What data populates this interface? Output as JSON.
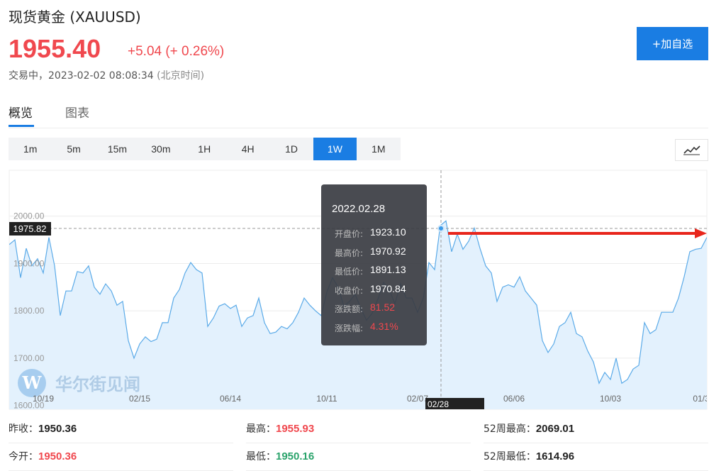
{
  "header": {
    "title": "现货黄金",
    "symbol": "(XAUUSD)",
    "price": "1955.40",
    "change": "+5.04",
    "change_pct": "(+ 0.26%)",
    "status": "交易中，2023-02-02 08:08:34",
    "timezone": "(北京时间)",
    "button": "+加自选"
  },
  "tabs": [
    "概览",
    "图表"
  ],
  "intervals": [
    "1m",
    "5m",
    "15m",
    "30m",
    "1H",
    "4H",
    "1D",
    "1W",
    "1M"
  ],
  "active_interval": "1W",
  "chart_data": {
    "type": "area",
    "color": "#5aaae8",
    "fill": "#e3f1fd",
    "categories": [
      null,
      null,
      null,
      null,
      null,
      null,
      "10/19",
      null,
      null,
      null,
      null,
      null,
      null,
      null,
      null,
      null,
      null,
      null,
      null,
      null,
      null,
      null,
      null,
      "02/15",
      null,
      null,
      null,
      null,
      null,
      null,
      null,
      null,
      null,
      null,
      null,
      null,
      null,
      null,
      null,
      "06/14",
      null,
      null,
      null,
      null,
      null,
      null,
      null,
      null,
      null,
      null,
      null,
      null,
      null,
      null,
      null,
      null,
      "10/11",
      null,
      null,
      null,
      null,
      null,
      null,
      null,
      null,
      null,
      null,
      null,
      null,
      null,
      null,
      null,
      "02/07",
      null,
      null,
      null,
      null,
      null,
      null,
      null,
      null,
      null,
      null,
      null,
      null,
      null,
      null,
      null,
      null,
      "06/06",
      null,
      null,
      null,
      null,
      null,
      null,
      null,
      null,
      null,
      null,
      null,
      null,
      null,
      null,
      null,
      null,
      "10/03",
      null,
      null,
      null,
      null,
      null,
      null,
      null,
      null,
      null,
      null,
      null,
      null,
      null,
      null,
      null,
      "01/3",
      null
    ],
    "values": [
      1940,
      1950,
      1870,
      1932,
      1895,
      1910,
      1880,
      1955,
      1895,
      1790,
      1842,
      1842,
      1883,
      1880,
      1895,
      1850,
      1835,
      1857,
      1842,
      1812,
      1820,
      1737,
      1700,
      1730,
      1745,
      1735,
      1740,
      1775,
      1775,
      1827,
      1845,
      1880,
      1902,
      1887,
      1880,
      1767,
      1785,
      1810,
      1815,
      1805,
      1812,
      1767,
      1785,
      1790,
      1827,
      1775,
      1752,
      1755,
      1767,
      1762,
      1775,
      1797,
      1827,
      1812,
      1800,
      1790,
      1840,
      1870,
      1850,
      1810,
      1820,
      1835,
      1805,
      1780,
      1795,
      1825,
      1860,
      1845,
      1815,
      1857,
      1827,
      1827,
      1797,
      1827,
      1902,
      1887,
      1980,
      1990,
      1925,
      1962,
      1930,
      1947,
      1975,
      1932,
      1895,
      1880,
      1820,
      1850,
      1855,
      1850,
      1872,
      1842,
      1827,
      1812,
      1737,
      1712,
      1730,
      1767,
      1775,
      1797,
      1752,
      1745,
      1715,
      1692,
      1647,
      1670,
      1655,
      1700,
      1647,
      1655,
      1677,
      1685,
      1775,
      1752,
      1760,
      1797,
      1797,
      1797,
      1827,
      1872,
      1925,
      1930,
      1932,
      1955
    ],
    "ylim": [
      1592,
      2097
    ],
    "yticks": [
      {
        "value": 1600,
        "label": "1600.00"
      },
      {
        "value": 1700,
        "label": "1700.00"
      },
      {
        "value": 1800,
        "label": "1800.00"
      },
      {
        "value": 1900,
        "label": "1900.00"
      },
      {
        "value": 2000,
        "label": "2000.00"
      }
    ],
    "grid": true,
    "crosshair_value": "1975.82",
    "crosshair_date": "02/28",
    "watermark": "华尔街见闻",
    "tooltip": {
      "date": "2022.02.28",
      "rows": [
        {
          "label": "开盘价:",
          "value": "1923.10",
          "color": "#ffffff"
        },
        {
          "label": "最高价:",
          "value": "1970.92",
          "color": "#ffffff"
        },
        {
          "label": "最低价:",
          "value": "1891.13",
          "color": "#ffffff"
        },
        {
          "label": "收盘价:",
          "value": "1970.84",
          "color": "#ffffff"
        },
        {
          "label": "涨跌额:",
          "value": "81.52",
          "color": "#f0484e"
        },
        {
          "label": "涨跌幅:",
          "value": "4.31%",
          "color": "#f0484e"
        }
      ]
    }
  },
  "stats": [
    {
      "label": "昨收：",
      "value": "1950.36",
      "color": "#222222"
    },
    {
      "label": "最高：",
      "value": "1955.93",
      "color": "#f0484e"
    },
    {
      "label": "52周最高：",
      "value": "2069.01",
      "color": "#222222"
    },
    {
      "label": "今开：",
      "value": "1950.36",
      "color": "#f0484e"
    },
    {
      "label": "最低：",
      "value": "1950.16",
      "color": "#2aa36b"
    },
    {
      "label": "52周最低：",
      "value": "1614.96",
      "color": "#222222"
    }
  ]
}
